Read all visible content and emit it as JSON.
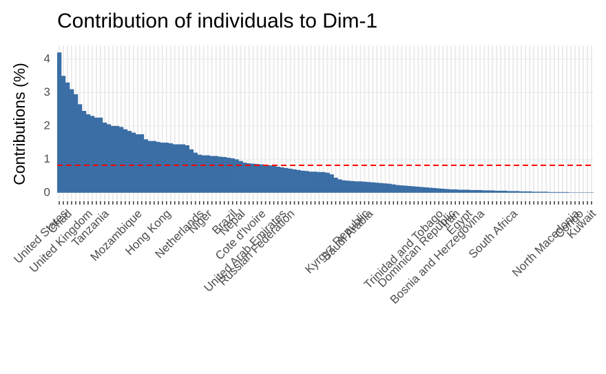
{
  "chart_data": {
    "type": "bar",
    "title": "Contribution of individuals to Dim-1",
    "ylabel": "Contributions (%)",
    "categories": [
      null,
      "United States",
      "Chad",
      null,
      null,
      null,
      null,
      "United Kingdom",
      null,
      null,
      null,
      "Tanzania",
      null,
      null,
      null,
      null,
      null,
      null,
      null,
      "Mozambique",
      null,
      null,
      null,
      null,
      null,
      null,
      "Hong Kong",
      null,
      null,
      null,
      null,
      null,
      null,
      null,
      "Netherlands",
      null,
      "Niger",
      null,
      null,
      null,
      null,
      null,
      "Brazil",
      null,
      "Nepal",
      null,
      null,
      null,
      null,
      "Cote d'Ivoire",
      null,
      null,
      null,
      null,
      "United Arab Emirates",
      null,
      "Russian Federation",
      null,
      null,
      null,
      null,
      null,
      null,
      null,
      null,
      null,
      null,
      null,
      null,
      null,
      null,
      null,
      null,
      null,
      "Kyrgyz Republic",
      "Saudi Arabia",
      null,
      null,
      null,
      null,
      null,
      null,
      null,
      null,
      null,
      null,
      null,
      null,
      null,
      null,
      null,
      null,
      "Trinidad and Tobago",
      null,
      null,
      "Dominican Republic",
      "Iran",
      null,
      null,
      "Egypt",
      null,
      null,
      "Bosnia and Herzegovina",
      null,
      null,
      null,
      null,
      null,
      null,
      null,
      "South Africa",
      null,
      null,
      null,
      null,
      null,
      null,
      null,
      null,
      null,
      null,
      null,
      null,
      null,
      null,
      "North Macedonia",
      "Congo",
      null,
      null,
      "Kuwait"
    ],
    "values": [
      4.2,
      3.5,
      3.3,
      3.1,
      2.95,
      2.65,
      2.45,
      2.35,
      2.3,
      2.25,
      2.25,
      2.1,
      2.05,
      2.0,
      2.0,
      1.97,
      1.9,
      1.85,
      1.8,
      1.75,
      1.75,
      1.6,
      1.55,
      1.55,
      1.52,
      1.5,
      1.5,
      1.48,
      1.45,
      1.45,
      1.45,
      1.42,
      1.3,
      1.2,
      1.14,
      1.12,
      1.12,
      1.1,
      1.1,
      1.08,
      1.07,
      1.05,
      1.03,
      1.0,
      0.95,
      0.9,
      0.88,
      0.87,
      0.86,
      0.85,
      0.84,
      0.82,
      0.8,
      0.78,
      0.76,
      0.74,
      0.72,
      0.7,
      0.68,
      0.66,
      0.65,
      0.63,
      0.63,
      0.62,
      0.62,
      0.6,
      0.55,
      0.45,
      0.4,
      0.37,
      0.36,
      0.35,
      0.34,
      0.34,
      0.33,
      0.32,
      0.31,
      0.3,
      0.29,
      0.28,
      0.27,
      0.25,
      0.23,
      0.22,
      0.21,
      0.2,
      0.19,
      0.18,
      0.17,
      0.16,
      0.15,
      0.14,
      0.13,
      0.12,
      0.11,
      0.1,
      0.1,
      0.09,
      0.09,
      0.09,
      0.08,
      0.08,
      0.08,
      0.07,
      0.07,
      0.07,
      0.06,
      0.06,
      0.06,
      0.05,
      0.05,
      0.05,
      0.04,
      0.04,
      0.04,
      0.03,
      0.03,
      0.03,
      0.03,
      0.02,
      0.02,
      0.02,
      0.02,
      0.02,
      0.01,
      0.01,
      0.01,
      0.01,
      0.01,
      0.01
    ],
    "color": "#3a6ea5",
    "reference_line": 0.82,
    "reference_color": "#ff0000",
    "ylim": [
      -0.21,
      4.41
    ],
    "yticks": [
      0,
      1,
      2,
      3,
      4
    ],
    "grid": true
  }
}
